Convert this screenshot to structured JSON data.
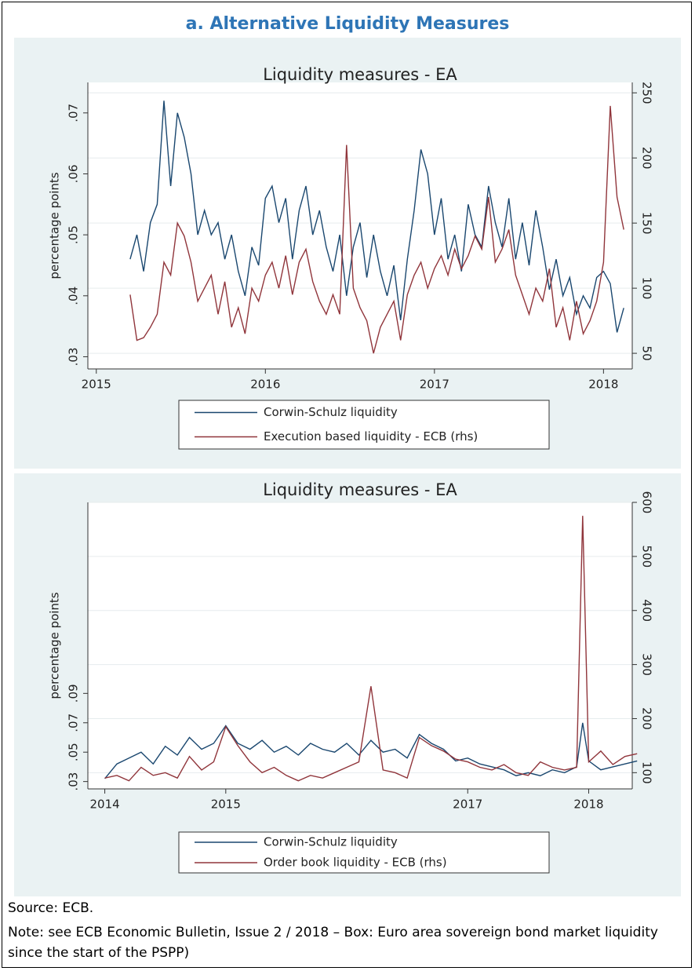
{
  "title": "a. Alternative Liquidity Measures",
  "source": "Source: ECB.",
  "note": "Note: see ECB Economic Bulletin, Issue 2 / 2018 – Box: Euro area sovereign bond market liquidity since the start of the PSPP)",
  "chart_data": [
    {
      "type": "line",
      "title": "Liquidity measures - EA",
      "ylabel": "percentage points",
      "x": [
        2015.2,
        2015.24,
        2015.28,
        2015.32,
        2015.36,
        2015.4,
        2015.44,
        2015.48,
        2015.52,
        2015.56,
        2015.6,
        2015.64,
        2015.68,
        2015.72,
        2015.76,
        2015.8,
        2015.84,
        2015.88,
        2015.92,
        2015.96,
        2016.0,
        2016.04,
        2016.08,
        2016.12,
        2016.16,
        2016.2,
        2016.24,
        2016.28,
        2016.32,
        2016.36,
        2016.4,
        2016.44,
        2016.48,
        2016.52,
        2016.56,
        2016.6,
        2016.64,
        2016.68,
        2016.72,
        2016.76,
        2016.8,
        2016.84,
        2016.88,
        2016.92,
        2016.96,
        2017.0,
        2017.04,
        2017.08,
        2017.12,
        2017.16,
        2017.2,
        2017.24,
        2017.28,
        2017.32,
        2017.36,
        2017.4,
        2017.44,
        2017.48,
        2017.52,
        2017.56,
        2017.6,
        2017.64,
        2017.68,
        2017.72,
        2017.76,
        2017.8,
        2017.84,
        2017.88,
        2017.92,
        2017.96,
        2018.0,
        2018.04,
        2018.08,
        2018.12
      ],
      "xlim": [
        2014.95,
        2018.17
      ],
      "xticks": [
        2015,
        2016,
        2017,
        2018
      ],
      "ylim": [
        0.028,
        0.075
      ],
      "yticks": [
        {
          "value": 0.03,
          "label": ".03"
        },
        {
          "value": 0.04,
          "label": ".04"
        },
        {
          "value": 0.05,
          "label": ".05"
        },
        {
          "value": 0.06,
          "label": ".06"
        },
        {
          "value": 0.07,
          "label": ".07"
        }
      ],
      "y2lim": [
        38,
        258
      ],
      "y2ticks": [
        50,
        100,
        150,
        200,
        250
      ],
      "grid": true,
      "legend": "bottom",
      "series": [
        {
          "name": "Corwin-Schulz liquidity",
          "color": "#1a476f",
          "values": [
            0.046,
            0.05,
            0.044,
            0.052,
            0.055,
            0.072,
            0.058,
            0.07,
            0.066,
            0.06,
            0.05,
            0.054,
            0.05,
            0.052,
            0.046,
            0.05,
            0.044,
            0.04,
            0.048,
            0.045,
            0.056,
            0.058,
            0.052,
            0.056,
            0.046,
            0.054,
            0.058,
            0.05,
            0.054,
            0.048,
            0.044,
            0.05,
            0.04,
            0.048,
            0.052,
            0.043,
            0.05,
            0.044,
            0.04,
            0.045,
            0.036,
            0.046,
            0.054,
            0.064,
            0.06,
            0.05,
            0.056,
            0.046,
            0.05,
            0.044,
            0.055,
            0.05,
            0.048,
            0.058,
            0.052,
            0.048,
            0.056,
            0.046,
            0.052,
            0.045,
            0.054,
            0.048,
            0.041,
            0.046,
            0.04,
            0.043,
            0.037,
            0.04,
            0.038,
            0.043,
            0.044,
            0.042,
            0.034,
            0.038
          ]
        },
        {
          "name": "Execution based liquidity - ECB (rhs)",
          "color": "#90353b",
          "axis": "y2",
          "values": [
            95,
            60,
            62,
            70,
            80,
            120,
            110,
            150,
            140,
            120,
            90,
            100,
            110,
            80,
            105,
            70,
            85,
            65,
            100,
            90,
            110,
            120,
            100,
            125,
            95,
            120,
            130,
            105,
            90,
            80,
            95,
            80,
            210,
            100,
            85,
            75,
            50,
            70,
            80,
            90,
            60,
            95,
            110,
            120,
            100,
            115,
            125,
            110,
            130,
            115,
            125,
            140,
            130,
            170,
            120,
            130,
            145,
            110,
            95,
            80,
            100,
            90,
            115,
            70,
            85,
            60,
            90,
            65,
            75,
            90,
            120,
            240,
            170,
            145
          ]
        }
      ]
    },
    {
      "type": "line",
      "title": "Liquidity measures - EA",
      "ylabel": "percentage points",
      "x": [
        2014.0,
        2014.1,
        2014.2,
        2014.3,
        2014.4,
        2014.5,
        2014.6,
        2014.7,
        2014.8,
        2014.9,
        2015.0,
        2015.1,
        2015.2,
        2015.3,
        2015.4,
        2015.5,
        2015.6,
        2015.7,
        2015.8,
        2015.9,
        2016.0,
        2016.1,
        2016.2,
        2016.3,
        2016.4,
        2016.5,
        2016.6,
        2016.7,
        2016.8,
        2016.9,
        2017.0,
        2017.1,
        2017.2,
        2017.3,
        2017.4,
        2017.5,
        2017.6,
        2017.7,
        2017.8,
        2017.9,
        2017.95,
        2018.0,
        2018.1,
        2018.2,
        2018.3,
        2018.4
      ],
      "xlim": [
        2013.86,
        2018.36
      ],
      "xticks": [
        2014,
        2015,
        2017,
        2018
      ],
      "ylim": [
        0.025,
        0.22
      ],
      "yticks": [
        {
          "value": 0.03,
          "label": ".03"
        },
        {
          "value": 0.05,
          "label": ".05"
        },
        {
          "value": 0.07,
          "label": ".07"
        },
        {
          "value": 0.09,
          "label": ".09"
        }
      ],
      "y2lim": [
        70,
        600
      ],
      "y2ticks": [
        100,
        200,
        300,
        400,
        500,
        600
      ],
      "grid": true,
      "legend": "bottom",
      "series": [
        {
          "name": "Corwin-Schulz liquidity",
          "color": "#1a476f",
          "values": [
            0.032,
            0.042,
            0.046,
            0.05,
            0.042,
            0.054,
            0.048,
            0.06,
            0.052,
            0.056,
            0.068,
            0.056,
            0.052,
            0.058,
            0.05,
            0.054,
            0.048,
            0.056,
            0.052,
            0.05,
            0.056,
            0.048,
            0.058,
            0.05,
            0.052,
            0.046,
            0.062,
            0.056,
            0.052,
            0.044,
            0.046,
            0.042,
            0.04,
            0.038,
            0.034,
            0.036,
            0.034,
            0.038,
            0.036,
            0.04,
            0.07,
            0.044,
            0.038,
            0.04,
            0.042,
            0.044
          ]
        },
        {
          "name": "Order book liquidity - ECB (rhs)",
          "color": "#90353b",
          "axis": "y2",
          "values": [
            90,
            95,
            85,
            110,
            95,
            100,
            90,
            130,
            105,
            120,
            185,
            150,
            120,
            100,
            110,
            95,
            85,
            95,
            90,
            100,
            110,
            120,
            260,
            105,
            100,
            90,
            165,
            150,
            140,
            125,
            120,
            110,
            105,
            115,
            100,
            95,
            120,
            110,
            105,
            110,
            575,
            120,
            140,
            115,
            130,
            135
          ]
        }
      ]
    }
  ]
}
